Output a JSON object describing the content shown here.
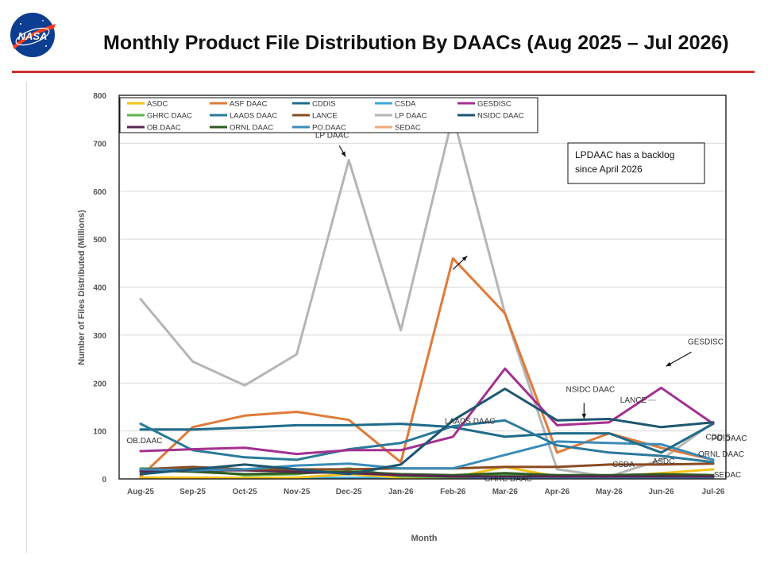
{
  "page": {
    "title": "Monthly Product File Distribution By DAACs (Aug 2025 – Jul 2026)",
    "logo_text": "NASA"
  },
  "chart_data": {
    "type": "line",
    "title": "",
    "xlabel": "Month",
    "ylabel": "Number of Files Distributed (Millions)",
    "ylim": [
      0,
      800
    ],
    "yticks": [
      0,
      100,
      200,
      300,
      400,
      500,
      600,
      700,
      800
    ],
    "grid": "horizontal",
    "legend_position": "top-left",
    "categories": [
      "Aug-25",
      "Sep-25",
      "Oct-25",
      "Nov-25",
      "Dec-25",
      "Jan-26",
      "Feb-26",
      "Mar-26",
      "Apr-26",
      "May-26",
      "Jun-26",
      "Jul-26"
    ],
    "series": [
      {
        "name": "ASDC",
        "color": "#f5c21a",
        "values": [
          3,
          3,
          2,
          3,
          10,
          3,
          3,
          25,
          5,
          5,
          12,
          20
        ]
      },
      {
        "name": "ASF DAAC",
        "color": "#e07a3a",
        "values": [
          5,
          108,
          132,
          140,
          123,
          35,
          460,
          345,
          55,
          95,
          65,
          40
        ]
      },
      {
        "name": "CDDIS",
        "color": "#1f6b8a",
        "values": [
          103,
          103,
          107,
          112,
          112,
          115,
          108,
          88,
          95,
          95,
          55,
          115
        ]
      },
      {
        "name": "CSDA",
        "color": "#3aa6d8",
        "values": [
          2,
          2,
          2,
          2,
          2,
          2,
          2,
          2,
          2,
          2,
          2,
          2
        ]
      },
      {
        "name": "GESDISC",
        "color": "#a3308f",
        "values": [
          58,
          62,
          65,
          52,
          60,
          60,
          88,
          230,
          112,
          118,
          190,
          115
        ]
      },
      {
        "name": "GHRC DAAC",
        "color": "#5fb34a",
        "values": [
          22,
          20,
          8,
          10,
          22,
          5,
          3,
          8,
          5,
          5,
          5,
          5
        ]
      },
      {
        "name": "LAADS DAAC",
        "color": "#2a7a9a",
        "values": [
          115,
          60,
          45,
          40,
          62,
          75,
          110,
          122,
          70,
          55,
          48,
          35
        ]
      },
      {
        "name": "LANCE",
        "color": "#8a4b22",
        "values": [
          20,
          25,
          20,
          20,
          20,
          22,
          22,
          25,
          25,
          30,
          30,
          32
        ]
      },
      {
        "name": "LP DAAC",
        "color": "#b5b5b5",
        "values": [
          375,
          245,
          195,
          260,
          665,
          310,
          757,
          345,
          20,
          5,
          40,
          118
        ]
      },
      {
        "name": "NSIDC DAAC",
        "color": "#1d5670",
        "values": [
          10,
          20,
          30,
          20,
          10,
          30,
          122,
          188,
          122,
          125,
          108,
          118
        ]
      },
      {
        "name": "OB.DAAC",
        "color": "#5a2450",
        "values": [
          15,
          18,
          18,
          15,
          12,
          8,
          5,
          5,
          5,
          5,
          5,
          5
        ]
      },
      {
        "name": "ORNL DAAC",
        "color": "#2e5b23",
        "values": [
          18,
          15,
          10,
          12,
          15,
          10,
          8,
          12,
          8,
          8,
          10,
          8
        ]
      },
      {
        "name": "PO.DAAC",
        "color": "#3a8cb8",
        "values": [
          20,
          18,
          20,
          28,
          32,
          22,
          22,
          50,
          78,
          75,
          72,
          40
        ]
      },
      {
        "name": "SEDAC",
        "color": "#f0a878",
        "values": [
          2,
          2,
          2,
          2,
          2,
          2,
          2,
          2,
          2,
          2,
          2,
          2
        ]
      }
    ],
    "annotations": [
      {
        "text": "LP DAAC",
        "series": "LP DAAC",
        "category": "Dec-25"
      },
      {
        "text": "ASF DAAC",
        "series": "ASF DAAC",
        "category": "Feb-26"
      },
      {
        "text": "LAADS DAAC",
        "series": "LAADS DAAC",
        "category": "Mar-26"
      },
      {
        "text": "NSIDC DAAC",
        "series": "NSIDC DAAC",
        "category": "Apr-26"
      },
      {
        "text": "GESDISC",
        "series": "GESDISC",
        "category": "Jun-26"
      },
      {
        "text": "LANCE",
        "series": "LANCE",
        "category": "Jun-26"
      },
      {
        "text": "OB.DAAC",
        "series": "OB.DAAC",
        "category": "Aug-25"
      },
      {
        "text": "GHRC DAAC",
        "series": "GHRC DAAC",
        "category": "Mar-26"
      },
      {
        "text": "CSDA",
        "series": "CSDA",
        "category": "May-26"
      },
      {
        "text": "ASDC",
        "series": "ASDC",
        "category": "Jun-26"
      },
      {
        "text": "CDDIS",
        "series": "CDDIS",
        "category": "Jul-26"
      },
      {
        "text": "PO.DAAC",
        "series": "PO.DAAC",
        "category": "Jul-26"
      },
      {
        "text": "ORNL DAAC",
        "series": "ORNL DAAC",
        "category": "Jul-26"
      },
      {
        "text": "SEDAC",
        "series": "SEDAC",
        "category": "Jul-26"
      }
    ],
    "note": {
      "lines": [
        "LPDAAC has a backlog",
        "since April 2026"
      ]
    }
  }
}
